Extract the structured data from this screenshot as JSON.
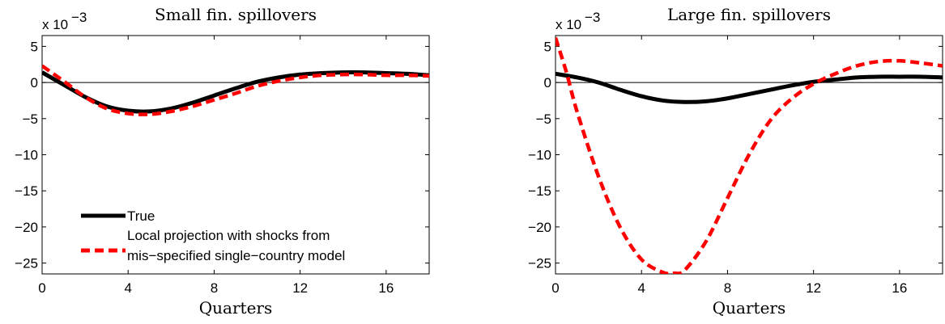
{
  "chart_data": [
    {
      "type": "line",
      "title": "Small fin. spillovers",
      "xlabel": "Quarters",
      "ylabel": "",
      "y_scale_note": "x 10",
      "y_scale_exponent": "−3",
      "xlim": [
        0,
        18
      ],
      "ylim": [
        -26.5,
        6.5
      ],
      "xticks": [
        0,
        4,
        8,
        12,
        16
      ],
      "yticks": [
        5,
        0,
        -5,
        -10,
        -15,
        -20,
        -25
      ],
      "ytick_labels": [
        "5",
        "0",
        "−5",
        "−10",
        "−15",
        "−20",
        "−25"
      ],
      "zero_line": true,
      "grid": false,
      "legend_position": "lower-left",
      "series": [
        {
          "name": "True",
          "color": "#000000",
          "style": "solid",
          "x": [
            0,
            1,
            2,
            3,
            4,
            5,
            6,
            7,
            8,
            9,
            10,
            11,
            12,
            13,
            14,
            15,
            16,
            17,
            18
          ],
          "values": [
            1.4,
            -0.3,
            -2.0,
            -3.3,
            -3.9,
            -4.0,
            -3.6,
            -2.8,
            -1.8,
            -0.8,
            0.1,
            0.7,
            1.1,
            1.3,
            1.4,
            1.4,
            1.3,
            1.2,
            1.0
          ]
        },
        {
          "name": "Local projection with shocks from mis−specified single−country model",
          "color": "#ff0000",
          "style": "dashed",
          "x": [
            0,
            1,
            2,
            3,
            4,
            5,
            6,
            7,
            8,
            9,
            10,
            11,
            12,
            13,
            14,
            15,
            16,
            17,
            18
          ],
          "values": [
            2.3,
            0.2,
            -2.0,
            -3.6,
            -4.3,
            -4.4,
            -4.0,
            -3.3,
            -2.4,
            -1.5,
            -0.5,
            0.2,
            0.7,
            1.0,
            1.1,
            1.1,
            1.0,
            1.0,
            0.9
          ]
        }
      ]
    },
    {
      "type": "line",
      "title": "Large fin. spillovers",
      "xlabel": "Quarters",
      "ylabel": "",
      "y_scale_note": "x 10",
      "y_scale_exponent": "−3",
      "xlim": [
        0,
        18
      ],
      "ylim": [
        -26.5,
        6.5
      ],
      "xticks": [
        0,
        4,
        8,
        12,
        16
      ],
      "yticks": [
        5,
        0,
        -5,
        -10,
        -15,
        -20,
        -25
      ],
      "ytick_labels": [
        "5",
        "0",
        "−5",
        "−10",
        "−15",
        "−20",
        "−25"
      ],
      "zero_line": true,
      "grid": false,
      "series": [
        {
          "color": "#000000",
          "style": "solid",
          "x": [
            0,
            1,
            2,
            3,
            4,
            5,
            6,
            7,
            8,
            9,
            10,
            11,
            12,
            13,
            14,
            15,
            16,
            17,
            18
          ],
          "values": [
            1.2,
            0.7,
            0.0,
            -1.0,
            -1.9,
            -2.5,
            -2.7,
            -2.6,
            -2.2,
            -1.6,
            -1.0,
            -0.4,
            0.1,
            0.4,
            0.7,
            0.8,
            0.8,
            0.8,
            0.7
          ]
        },
        {
          "color": "#ff0000",
          "style": "dashed",
          "x": [
            0,
            0.5,
            1,
            2,
            3,
            4,
            5,
            5.5,
            6,
            7,
            8,
            9,
            10,
            11,
            12,
            13,
            14,
            15,
            16,
            17,
            18
          ],
          "values": [
            6.2,
            1.5,
            -4.0,
            -13.0,
            -20.0,
            -24.5,
            -26.3,
            -26.4,
            -26.0,
            -22.0,
            -16.0,
            -10.0,
            -5.2,
            -2.2,
            -0.2,
            1.2,
            2.3,
            2.9,
            3.0,
            2.7,
            2.3
          ]
        }
      ]
    }
  ]
}
